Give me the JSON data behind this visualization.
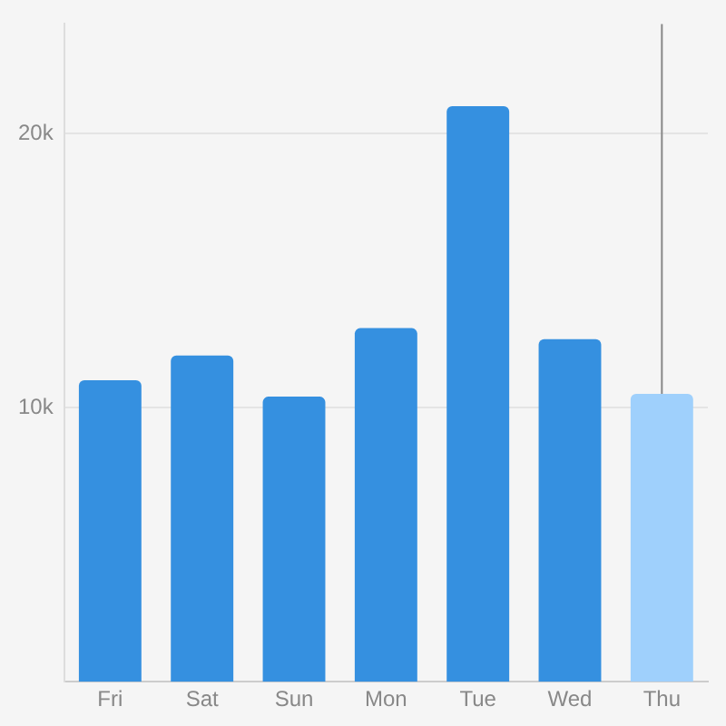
{
  "chart_data": {
    "type": "bar",
    "categories": [
      "Fri",
      "Sat",
      "Sun",
      "Mon",
      "Tue",
      "Wed",
      "Thu"
    ],
    "values": [
      11000,
      11900,
      10400,
      12900,
      21000,
      12500,
      10500
    ],
    "colors": [
      "#3590e0",
      "#3590e0",
      "#3590e0",
      "#3590e0",
      "#3590e0",
      "#3590e0",
      "#9fd0fc"
    ],
    "ylim": [
      0,
      24000
    ],
    "yticks": [
      {
        "value": 10000,
        "label": "10k"
      },
      {
        "value": 20000,
        "label": "20k"
      }
    ],
    "grid": "y",
    "ref_lines": [
      {
        "axis": "x",
        "value": "Thu",
        "color": "#888888"
      }
    ]
  }
}
